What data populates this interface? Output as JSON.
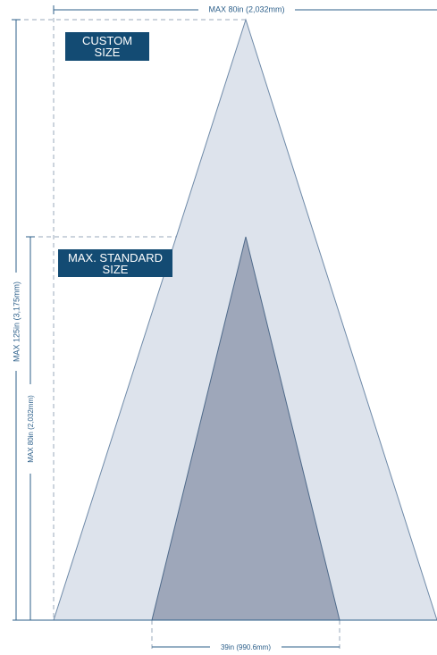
{
  "dimensions": {
    "top_width": "MAX 80in (2,032mm)",
    "custom_height": "MAX 125in (3,175mm)",
    "standard_height": "MAX 80in (2,032mm)",
    "base_width": "39in (990.6mm)"
  },
  "labels": {
    "custom": "CUSTOM SIZE",
    "standard": "MAX. STANDARD SIZE"
  }
}
